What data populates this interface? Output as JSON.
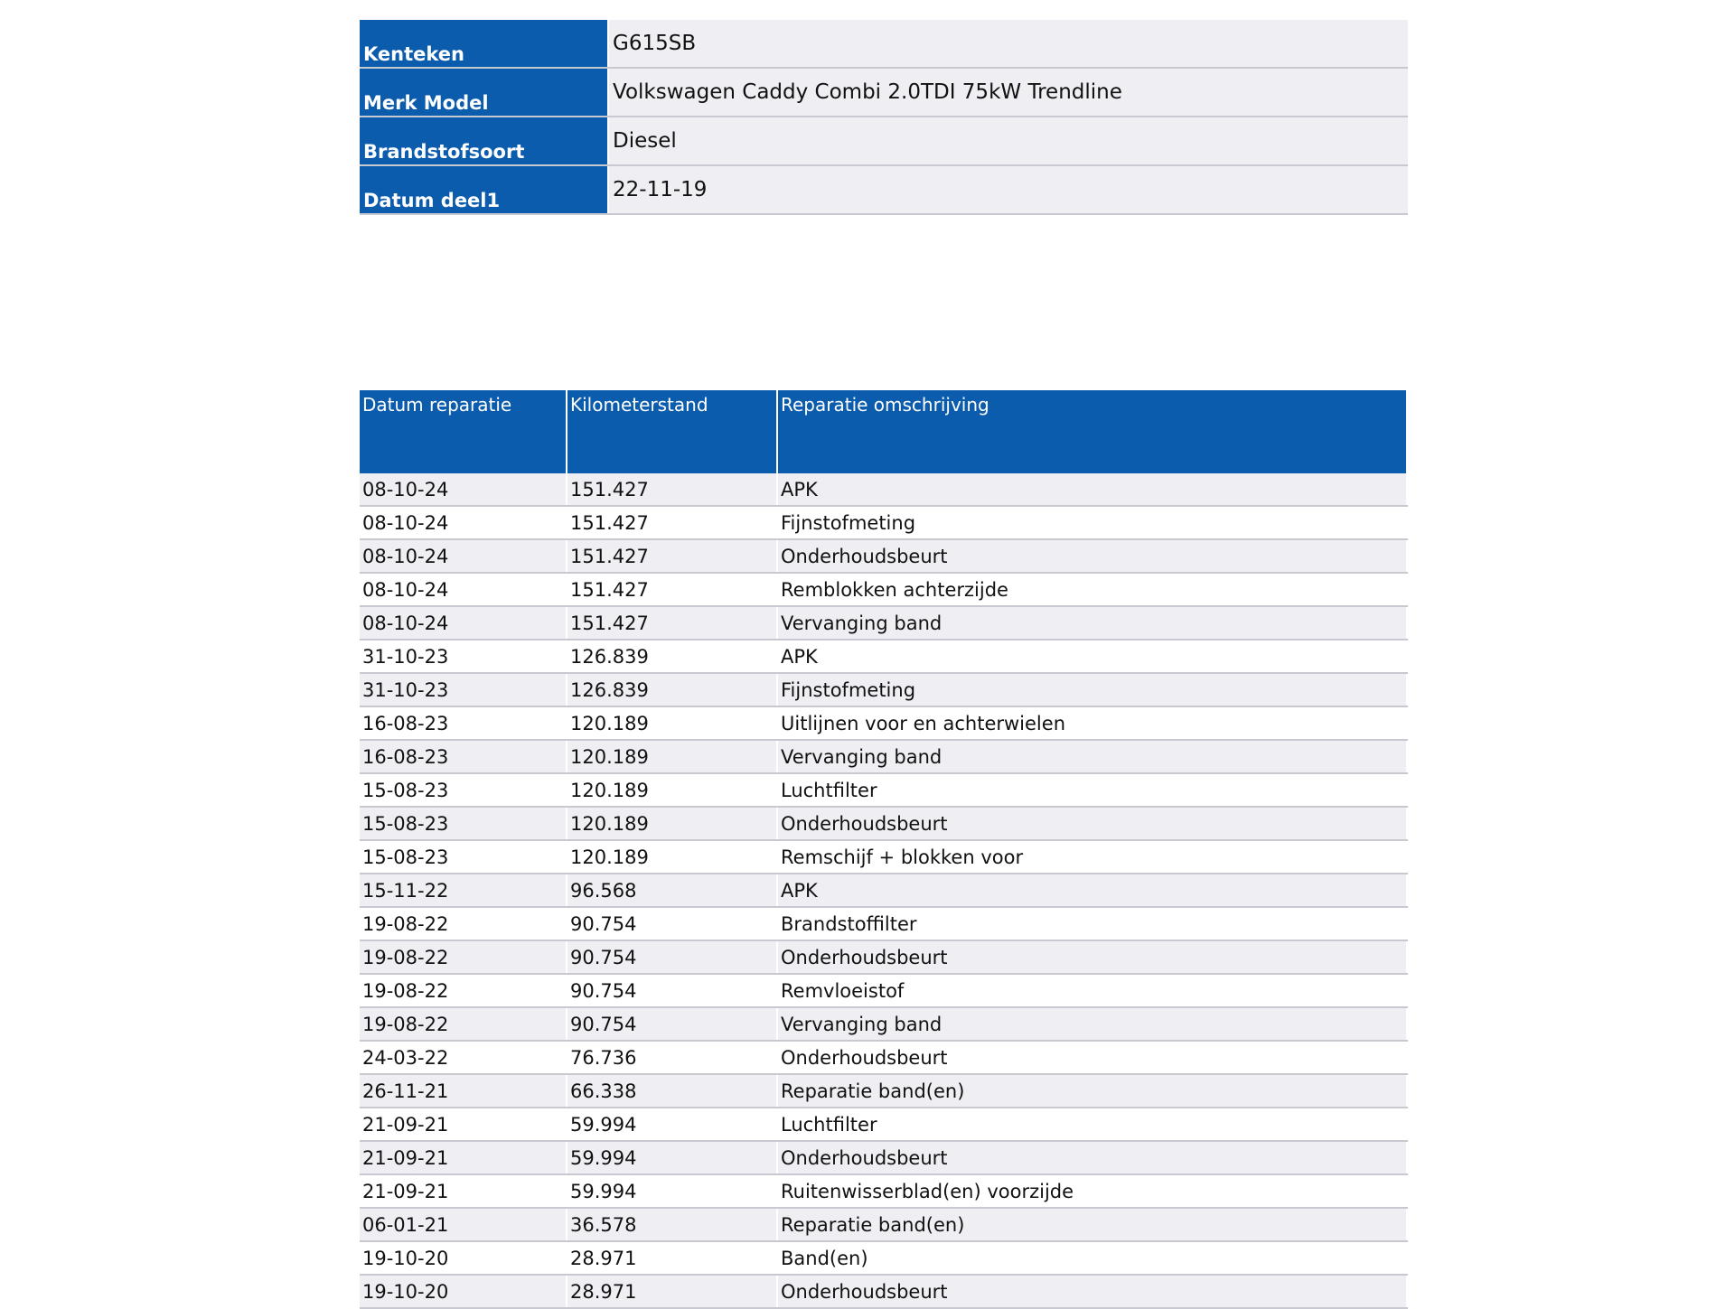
{
  "vehicle": {
    "rows": [
      [
        "Kenteken",
        "G615SB"
      ],
      [
        "Merk Model",
        "Volkswagen Caddy Combi 2.0TDI 75kW Trendline"
      ],
      [
        "Brandstofsoort",
        "Diesel"
      ],
      [
        "Datum deel1",
        "22-11-19"
      ]
    ]
  },
  "repairs": {
    "headers": [
      "Datum reparatie",
      "Kilometerstand",
      "Reparatie omschrijving"
    ],
    "rows": [
      [
        "08-10-24",
        "151.427",
        "APK"
      ],
      [
        "08-10-24",
        "151.427",
        "Fijnstofmeting"
      ],
      [
        "08-10-24",
        "151.427",
        "Onderhoudsbeurt"
      ],
      [
        "08-10-24",
        "151.427",
        "Remblokken achterzijde"
      ],
      [
        "08-10-24",
        "151.427",
        "Vervanging band"
      ],
      [
        "31-10-23",
        "126.839",
        "APK"
      ],
      [
        "31-10-23",
        "126.839",
        "Fijnstofmeting"
      ],
      [
        "16-08-23",
        "120.189",
        "Uitlijnen voor en achterwielen"
      ],
      [
        "16-08-23",
        "120.189",
        "Vervanging band"
      ],
      [
        "15-08-23",
        "120.189",
        "Luchtfilter"
      ],
      [
        "15-08-23",
        "120.189",
        "Onderhoudsbeurt"
      ],
      [
        "15-08-23",
        "120.189",
        "Remschijf + blokken voor"
      ],
      [
        "15-11-22",
        "96.568",
        "APK"
      ],
      [
        "19-08-22",
        "90.754",
        "Brandstoffilter"
      ],
      [
        "19-08-22",
        "90.754",
        "Onderhoudsbeurt"
      ],
      [
        "19-08-22",
        "90.754",
        "Remvloeistof"
      ],
      [
        "19-08-22",
        "90.754",
        "Vervanging band"
      ],
      [
        "24-03-22",
        "76.736",
        "Onderhoudsbeurt"
      ],
      [
        "26-11-21",
        "66.338",
        "Reparatie band(en)"
      ],
      [
        "21-09-21",
        "59.994",
        "Luchtfilter"
      ],
      [
        "21-09-21",
        "59.994",
        "Onderhoudsbeurt"
      ],
      [
        "21-09-21",
        "59.994",
        "Ruitenwisserblad(en) voorzijde"
      ],
      [
        "06-01-21",
        "36.578",
        "Reparatie band(en)"
      ],
      [
        "19-10-20",
        "28.971",
        "Band(en)"
      ],
      [
        "19-10-20",
        "28.971",
        "Onderhoudsbeurt"
      ]
    ]
  }
}
